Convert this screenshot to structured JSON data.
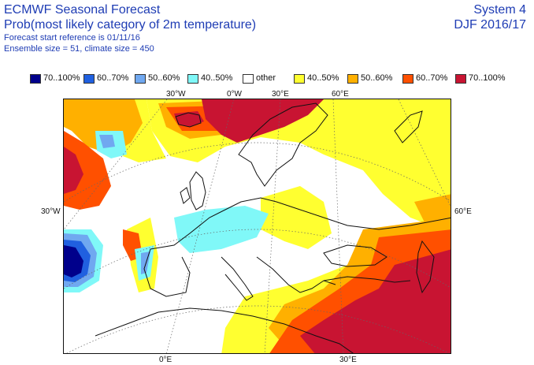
{
  "header": {
    "title": "ECMWF Seasonal Forecast",
    "subtitle": "Prob(most likely category of 2m temperature)",
    "start_reference": "Forecast start reference is 01/11/16",
    "ensemble": "Ensemble size = 51, climate size = 450",
    "system": "System 4",
    "season": "DJF 2016/17"
  },
  "legend": [
    {
      "label": "70..100%",
      "color": "#00008b"
    },
    {
      "label": "60..70%",
      "color": "#2060e0"
    },
    {
      "label": "50..60%",
      "color": "#70a8f0"
    },
    {
      "label": "40..50%",
      "color": "#80f8f8"
    },
    {
      "label": "other",
      "color": "#ffffff"
    },
    {
      "label": "40..50%",
      "color": "#ffff30"
    },
    {
      "label": "50..60%",
      "color": "#ffb000"
    },
    {
      "label": "60..70%",
      "color": "#ff5000"
    },
    {
      "label": "70..100%",
      "color": "#c81432"
    }
  ],
  "map": {
    "top_labels": [
      "30°W",
      "0°W",
      "30°E",
      "60°E"
    ],
    "left_label": "30°W",
    "right_label": "60°E",
    "bottom_labels": [
      "0°E",
      "30°E"
    ]
  }
}
